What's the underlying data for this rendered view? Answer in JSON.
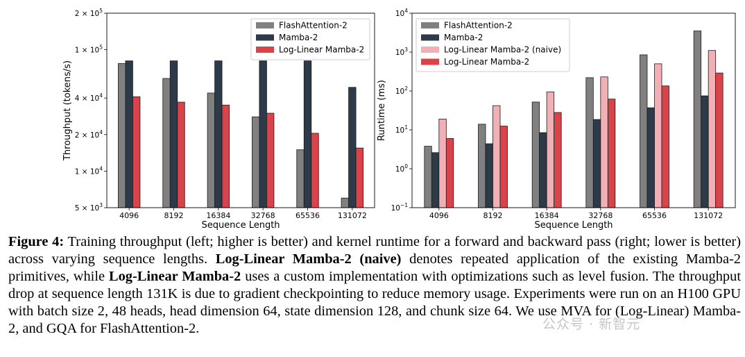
{
  "chart_data": [
    {
      "type": "bar",
      "scale": "log",
      "xlabel": "Sequence Length",
      "ylabel": "Throughput (tokens/s)",
      "ylim": [
        5000,
        200000
      ],
      "categories": [
        "4096",
        "8192",
        "16384",
        "32768",
        "65536",
        "131072"
      ],
      "yticks": [
        {
          "value": 200000,
          "mant": "2 × 10",
          "exp": "5"
        },
        {
          "value": 100000,
          "mant": "1 × 10",
          "exp": "5"
        },
        {
          "value": 40000,
          "mant": "4 × 10",
          "exp": "4"
        },
        {
          "value": 20000,
          "mant": "2 × 10",
          "exp": "4"
        },
        {
          "value": 10000,
          "mant": "1 × 10",
          "exp": "4"
        },
        {
          "value": 5000,
          "mant": "5 × 10",
          "exp": "3"
        }
      ],
      "legend_position": "upper-right",
      "series": [
        {
          "name": "FlashAttention-2",
          "color": "#808080",
          "values": [
            77000,
            58000,
            44000,
            28000,
            15000,
            6000
          ]
        },
        {
          "name": "Mamba-2",
          "color": "#2d3a4a",
          "values": [
            81000,
            81000,
            81000,
            81000,
            81000,
            49000
          ]
        },
        {
          "name": "Log-Linear Mamba-2",
          "color": "#d9444b",
          "values": [
            41000,
            37000,
            35000,
            30000,
            20500,
            15500
          ]
        }
      ]
    },
    {
      "type": "bar",
      "scale": "log",
      "xlabel": "Sequence Length",
      "ylabel": "Runtime (ms)",
      "ylim": [
        0.1,
        10000
      ],
      "categories": [
        "4096",
        "8192",
        "16384",
        "32768",
        "65536",
        "131072"
      ],
      "yticks": [
        {
          "value": 10000,
          "mant": "10",
          "exp": "4"
        },
        {
          "value": 1000,
          "mant": "10",
          "exp": "3"
        },
        {
          "value": 100,
          "mant": "10",
          "exp": "2"
        },
        {
          "value": 10,
          "mant": "10",
          "exp": "1"
        },
        {
          "value": 1,
          "mant": "10",
          "exp": "0"
        },
        {
          "value": 0.1,
          "mant": "10",
          "exp": "−1"
        }
      ],
      "legend_position": "upper-left",
      "series": [
        {
          "name": "FlashAttention-2",
          "color": "#808080",
          "values": [
            3.8,
            14,
            52,
            220,
            850,
            3500
          ]
        },
        {
          "name": "Mamba-2",
          "color": "#2d3a4a",
          "values": [
            2.6,
            4.4,
            8.5,
            18.5,
            37,
            75
          ]
        },
        {
          "name": "Log-Linear Mamba-2 (naive)",
          "color": "#f0b0b5",
          "values": [
            19,
            42,
            95,
            230,
            500,
            1100
          ]
        },
        {
          "name": "Log-Linear Mamba-2",
          "color": "#d9444b",
          "values": [
            6,
            12.5,
            28,
            62,
            135,
            290
          ]
        }
      ]
    }
  ],
  "caption": {
    "label": "Figure 4:",
    "text1": " Training throughput (left; higher is better) and kernel runtime for a forward and backward pass (right; lower is better) across varying sequence lengths. ",
    "bold1": "Log-Linear Mamba-2 (naive)",
    "text2": " denotes repeated application of the existing Mamba-2 primitives, while ",
    "bold2": "Log-Linear Mamba-2",
    "text3": " uses a custom implementation with optimizations such as level fusion. The throughput drop at sequence length 131K is due to gradient checkpointing to reduce memory usage. Experiments were run on an H100 GPU with batch size 2, 48 heads, head dimension 64, state dimension 128, and chunk size 64. We use MVA for (Log-Linear) Mamba-2, and GQA for FlashAttention-2."
  },
  "watermark": "公众号 · 新智元"
}
